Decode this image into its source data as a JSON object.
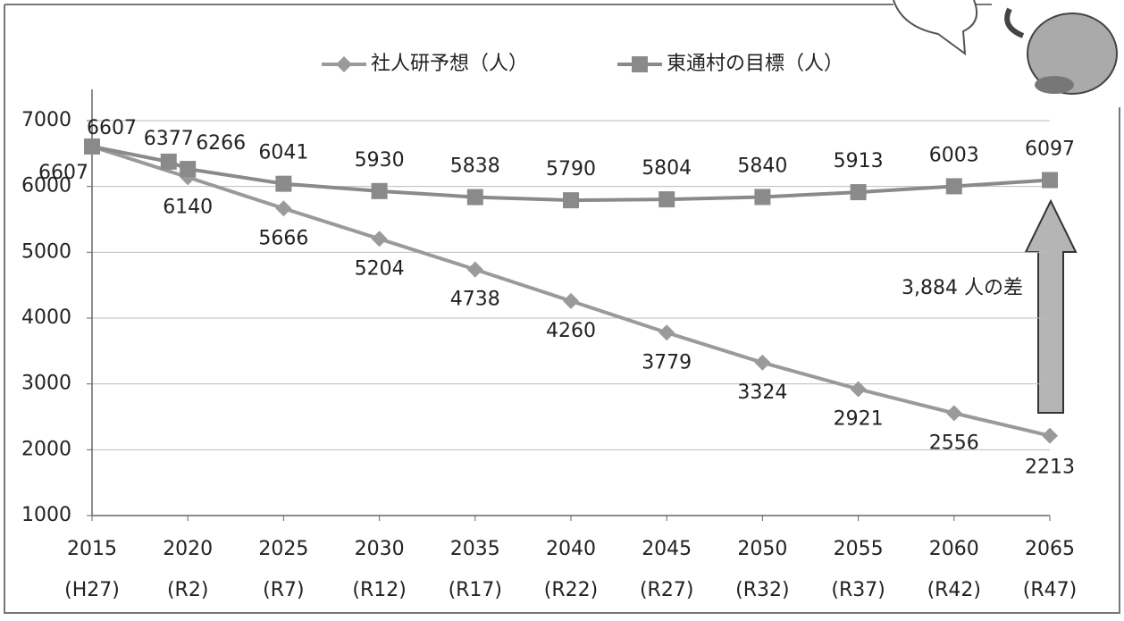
{
  "chart_data": {
    "type": "line",
    "series": [
      {
        "name": "社人研予想（人）",
        "color": "#9a9a9a",
        "marker": "diamond",
        "x": [
          2015,
          2020,
          2025,
          2030,
          2035,
          2040,
          2045,
          2050,
          2055,
          2060,
          2065
        ],
        "values": [
          6607,
          6140,
          5666,
          5204,
          4738,
          4260,
          3779,
          3324,
          2921,
          2556,
          2213
        ]
      },
      {
        "name": "東通村の目標（人）",
        "color": "#8a8a8a",
        "marker": "square",
        "x": [
          2015,
          2019,
          2020,
          2025,
          2030,
          2035,
          2040,
          2045,
          2050,
          2055,
          2060,
          2065
        ],
        "values": [
          6607,
          6377,
          6266,
          6041,
          5930,
          5838,
          5790,
          5804,
          5840,
          5913,
          6003,
          6097
        ]
      }
    ],
    "xlim": [
      2015,
      2065
    ],
    "xticks": [
      2015,
      2020,
      2025,
      2030,
      2035,
      2040,
      2045,
      2050,
      2055,
      2060,
      2065
    ],
    "xtick_sublabels": [
      "(H27)",
      "(R2)",
      "(R7)",
      "(R12)",
      "(R17)",
      "(R22)",
      "(R27)",
      "(R32)",
      "(R37)",
      "(R42)",
      "(R47)"
    ],
    "ylim": [
      1000,
      7000
    ],
    "yticks": [
      1000,
      2000,
      3000,
      4000,
      5000,
      6000,
      7000
    ],
    "grid": true,
    "legend": "top",
    "annotation": "3,884 人の差"
  }
}
